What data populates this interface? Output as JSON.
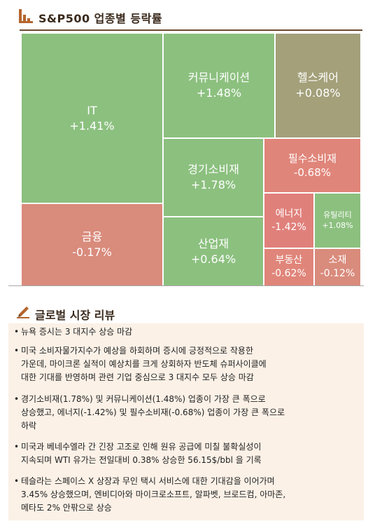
{
  "header": {
    "title": "S&P500 업종별 등락률"
  },
  "chart_data": {
    "type": "treemap",
    "title": "S&P500 업종별 등락률",
    "sectors": [
      {
        "name": "IT",
        "change": 1.41,
        "label": "+1.41%",
        "color": "#8cc07f"
      },
      {
        "name": "금융",
        "change": -0.17,
        "label": "-0.17%",
        "color": "#d98b7c"
      },
      {
        "name": "커뮤니케이션",
        "change": 1.48,
        "label": "+1.48%",
        "color": "#8cc07f"
      },
      {
        "name": "헬스케어",
        "change": 0.08,
        "label": "+0.08%",
        "color": "#a3a07a"
      },
      {
        "name": "경기소비재",
        "change": 1.78,
        "label": "+1.78%",
        "color": "#8cc07f"
      },
      {
        "name": "필수소비재",
        "change": -0.68,
        "label": "-0.68%",
        "color": "#e0857a"
      },
      {
        "name": "산업재",
        "change": 0.64,
        "label": "+0.64%",
        "color": "#8cc07f"
      },
      {
        "name": "에너지",
        "change": -1.42,
        "label": "-1.42%",
        "color": "#e0807b"
      },
      {
        "name": "유틸리티",
        "change": 1.08,
        "label": "+1.08%",
        "color": "#8cc07f"
      },
      {
        "name": "부동산",
        "change": -0.62,
        "label": "-0.62%",
        "color": "#e0857a"
      },
      {
        "name": "소재",
        "change": -0.12,
        "label": "-0.12%",
        "color": "#d98b7c"
      }
    ]
  },
  "review": {
    "title": "글로벌 시장 리뷰",
    "bullet": "•",
    "items": [
      [
        "뉴욕 증시는 3 대지수 상승 마감"
      ],
      [
        "미국 소비자물가지수가 예상을 하회하며 증시에 긍정적으로 작용한",
        "가운데, 마이크론 실적이 예상치를 크게 상회하자 반도체 슈퍼사이클에",
        "대한 기대를 반영하며 관련 기업 중심으로 3 대지수 모두 상승 마감"
      ],
      [
        "경기소비재(1.78%) 및 커뮤니케이션(1.48%) 업종이 가장 큰 폭으로",
        "상승했고, 에너지(-1.42%) 및 필수소비재(-0.68%) 업종이 가장 큰 폭으로",
        "하락"
      ],
      [
        "미국과 베네수엘라 간 긴장 고조로 인해 원유 공급에 미칠 불확실성이",
        "지속되며 WTI 유가는 전일대비 0.38% 상승한 56.15$/bbl 을 기록"
      ],
      [
        "테슬라는 스페이스 X 상장과 무인 택시 서비스에 대한 기대감을 이어가며",
        "3.45% 상승했으며, 엔비디아와 마이크로소프트, 알파벳, 브로드컴, 아마존,",
        "메타도 2% 안팎으로 상승"
      ]
    ]
  }
}
